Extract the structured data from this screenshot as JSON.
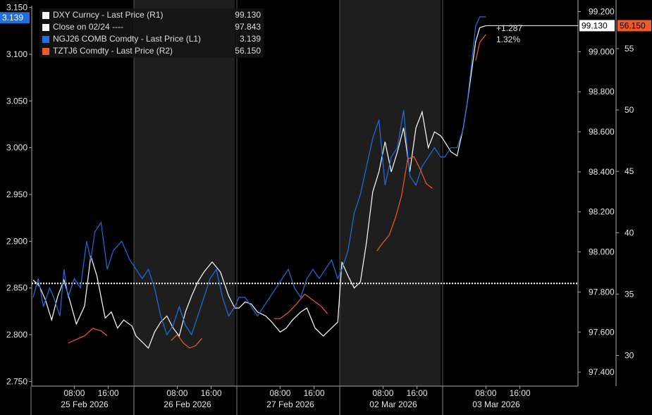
{
  "legend": [
    {
      "label": "DXY Curncy - Last Price (R1)",
      "value": "99.130",
      "color": "#ffffff"
    },
    {
      "label": "Close on 02/24 ----",
      "value": "97.843",
      "color": "#ffffff"
    },
    {
      "label": "NGJ26 COMB Comdty - Last Price (L1)",
      "value": "3.139",
      "color": "#1f6fe0"
    },
    {
      "label": "TZTJ6 Comdty - Last Price (R2)",
      "value": "56.150",
      "color": "#f05a28"
    }
  ],
  "badges": {
    "left_last": "3.139",
    "dxy_last": "99.130",
    "tztj6_last": "56.150",
    "change_abs": "+1.287",
    "change_pct": "1.32%"
  },
  "colors": {
    "background": "#000000",
    "shade": "#1e1e1e",
    "dxy": "#ffffff",
    "ng": "#1f6fe0",
    "tz": "#f05a28"
  },
  "chart_data": {
    "type": "line",
    "x_axis": {
      "hour_ticks": [
        "08:00",
        "16:00",
        "08:00",
        "16:00",
        "08:00",
        "16:00",
        "08:00",
        "16:00",
        "08:00",
        "16:00"
      ],
      "day_labels": [
        "25 Feb 2026",
        "26 Feb 2026",
        "27 Feb 2026",
        "02 Mar 2026",
        "03 Mar 2026"
      ]
    },
    "left_axis": {
      "ylim": [
        2.745,
        3.152
      ],
      "ticks": [
        "3.150",
        "3.100",
        "3.050",
        "3.000",
        "2.950",
        "2.900",
        "2.850",
        "2.800",
        "2.750"
      ]
    },
    "right1_axis": {
      "ylim": [
        97.33,
        99.23
      ],
      "ticks": [
        "99.200",
        "99.000",
        "98.800",
        "98.600",
        "98.400",
        "98.200",
        "98.000",
        "97.800",
        "97.600",
        "97.400"
      ]
    },
    "right2_axis": {
      "ylim": [
        27.5,
        58.5
      ],
      "ticks": [
        "55",
        "50",
        "45",
        "40",
        "35",
        "30"
      ]
    },
    "reference_line": {
      "name": "Close on 02/24",
      "value": 97.843,
      "axis": "R1"
    },
    "series": [
      {
        "name": "DXY Curncy - Last Price (R1)",
        "axis": "R1",
        "x": [
          0,
          0.06,
          0.12,
          0.18,
          0.24,
          0.3,
          0.36,
          0.42,
          0.5,
          0.56,
          0.62,
          0.7,
          0.76,
          0.82,
          0.88,
          0.96,
          1.0,
          1.06,
          1.12,
          1.18,
          1.24,
          1.3,
          1.36,
          1.42,
          1.48,
          1.54,
          1.6,
          1.66,
          1.74,
          1.82,
          1.9,
          1.96,
          2.0,
          2.06,
          2.12,
          2.18,
          2.26,
          2.32,
          2.4,
          2.46,
          2.52,
          2.6,
          2.66,
          2.74,
          2.82,
          2.9,
          2.96,
          3.0,
          3.06,
          3.12,
          3.18,
          3.24,
          3.3,
          3.36,
          3.42,
          3.48,
          3.54,
          3.6,
          3.66,
          3.72,
          3.78,
          3.84,
          3.9,
          3.96,
          4.0,
          4.06,
          4.12,
          4.18,
          4.22,
          4.26,
          4.3,
          4.34,
          4.4
        ],
        "y": [
          97.86,
          97.83,
          97.76,
          97.66,
          97.78,
          97.86,
          97.75,
          97.64,
          97.73,
          97.98,
          97.88,
          97.67,
          97.7,
          97.62,
          97.66,
          97.63,
          97.58,
          97.55,
          97.52,
          97.6,
          97.65,
          97.68,
          97.62,
          97.58,
          97.7,
          97.78,
          97.85,
          97.9,
          97.95,
          97.9,
          97.78,
          97.72,
          97.72,
          97.75,
          97.74,
          97.7,
          97.68,
          97.65,
          97.6,
          97.62,
          97.66,
          97.7,
          97.72,
          97.62,
          97.58,
          97.62,
          97.65,
          97.95,
          97.88,
          97.82,
          97.85,
          98.05,
          98.3,
          98.4,
          98.55,
          98.4,
          98.5,
          98.62,
          98.4,
          98.62,
          98.7,
          98.52,
          98.6,
          98.58,
          98.55,
          98.5,
          98.48,
          98.62,
          98.75,
          98.9,
          99.05,
          99.12,
          99.13
        ]
      },
      {
        "name": "NGJ26 COMB Comdty - Last Price (L1)",
        "axis": "L1",
        "x": [
          0,
          0.05,
          0.1,
          0.16,
          0.2,
          0.26,
          0.3,
          0.34,
          0.4,
          0.46,
          0.52,
          0.56,
          0.6,
          0.66,
          0.72,
          0.78,
          0.86,
          0.94,
          1.0,
          1.06,
          1.12,
          1.18,
          1.24,
          1.3,
          1.36,
          1.42,
          1.48,
          1.54,
          1.6,
          1.66,
          1.72,
          1.78,
          1.84,
          1.9,
          1.96,
          2.0,
          2.06,
          2.12,
          2.18,
          2.24,
          2.3,
          2.36,
          2.42,
          2.48,
          2.54,
          2.6,
          2.66,
          2.72,
          2.78,
          2.84,
          2.9,
          2.96,
          3.0,
          3.06,
          3.12,
          3.18,
          3.24,
          3.3,
          3.36,
          3.42,
          3.48,
          3.54,
          3.6,
          3.66,
          3.72,
          3.78,
          3.84,
          3.9,
          3.96,
          4.0,
          4.06,
          4.12,
          4.18,
          4.22,
          4.26,
          4.3,
          4.34,
          4.4
        ],
        "y": [
          2.84,
          2.86,
          2.83,
          2.85,
          2.84,
          2.82,
          2.87,
          2.84,
          2.86,
          2.85,
          2.9,
          2.88,
          2.91,
          2.92,
          2.87,
          2.89,
          2.9,
          2.88,
          2.87,
          2.86,
          2.87,
          2.85,
          2.82,
          2.8,
          2.81,
          2.83,
          2.81,
          2.8,
          2.82,
          2.84,
          2.86,
          2.87,
          2.84,
          2.82,
          2.83,
          2.84,
          2.84,
          2.83,
          2.82,
          2.83,
          2.84,
          2.85,
          2.86,
          2.87,
          2.85,
          2.84,
          2.86,
          2.87,
          2.86,
          2.87,
          2.88,
          2.86,
          2.87,
          2.89,
          2.93,
          2.95,
          2.98,
          3.01,
          3.03,
          2.96,
          2.99,
          3.0,
          3.04,
          2.97,
          2.96,
          2.98,
          2.99,
          3.0,
          2.99,
          2.99,
          3.0,
          3.0,
          3.02,
          3.05,
          3.09,
          3.13,
          3.14,
          3.14
        ]
      },
      {
        "name": "TZTJ6 Comdty - Last Price (R2)",
        "axis": "R2",
        "x": [
          0.34,
          0.42,
          0.5,
          0.58,
          0.66,
          0.72,
          1.34,
          1.4,
          1.46,
          1.52,
          1.58,
          1.64,
          2.34,
          2.4,
          2.48,
          2.56,
          2.64,
          2.72,
          2.8,
          2.86,
          3.34,
          3.4,
          3.46,
          3.52,
          3.58,
          3.64,
          3.7,
          3.76,
          3.82,
          3.88,
          4.3,
          4.34,
          4.4
        ],
        "y": [
          31.0,
          31.3,
          31.6,
          32.2,
          32.0,
          31.6,
          31.2,
          31.7,
          31.0,
          30.6,
          30.8,
          31.4,
          33.0,
          33.0,
          33.5,
          34.2,
          35.0,
          34.5,
          34.0,
          33.4,
          38.5,
          39.2,
          39.8,
          41.2,
          43.0,
          46.0,
          46.2,
          45.2,
          44.0,
          43.6,
          54.0,
          55.5,
          56.15
        ]
      }
    ]
  }
}
